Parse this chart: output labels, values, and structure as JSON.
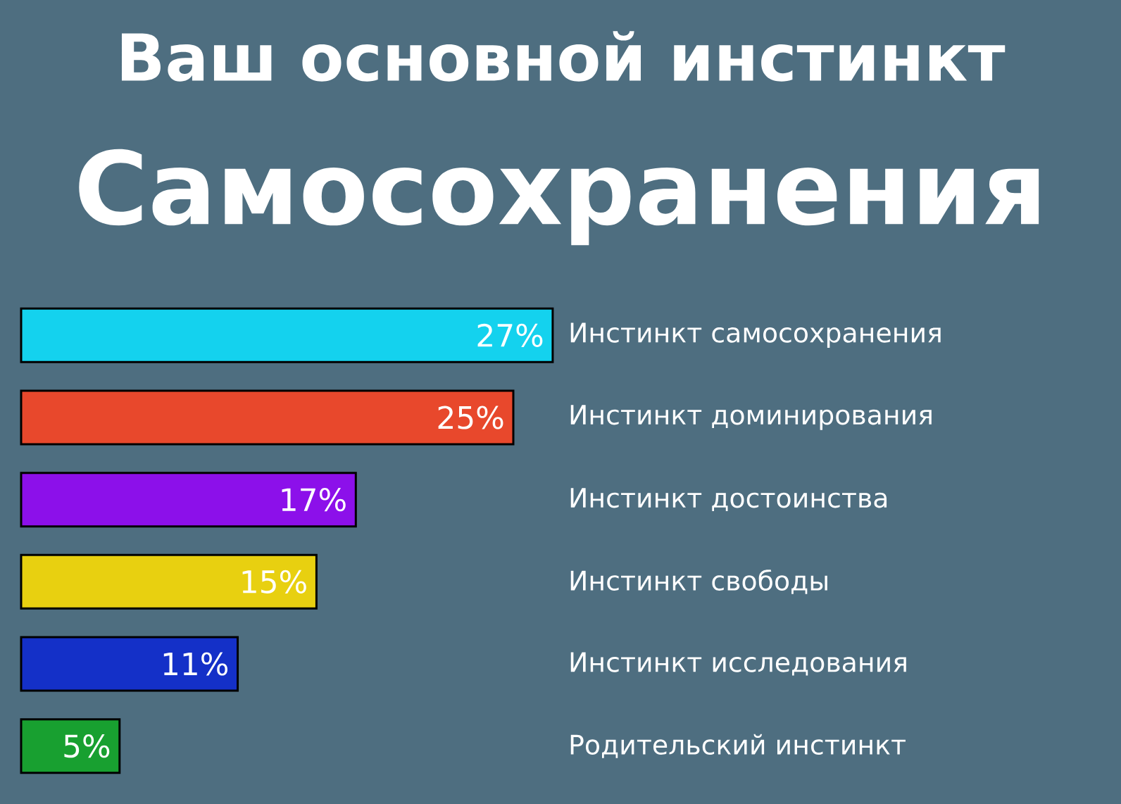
{
  "chart_data": {
    "type": "bar",
    "orientation": "horizontal",
    "title": "Ваш основной инстинкт",
    "subtitle": "Самосохранения",
    "categories": [
      "Инстинкт самосохранения",
      "Инстинкт доминирования",
      "Инстинкт достоинства",
      "Инстинкт свободы",
      "Инстинкт исследования",
      "Родительский инстинкт"
    ],
    "values": [
      27,
      25,
      17,
      15,
      11,
      5
    ],
    "colors": [
      "#14d2ee",
      "#e8482c",
      "#8c10ea",
      "#e8d010",
      "#1430c8",
      "#18a030"
    ],
    "value_labels": [
      "27%",
      "25%",
      "17%",
      "15%",
      "11%",
      "5%"
    ]
  }
}
